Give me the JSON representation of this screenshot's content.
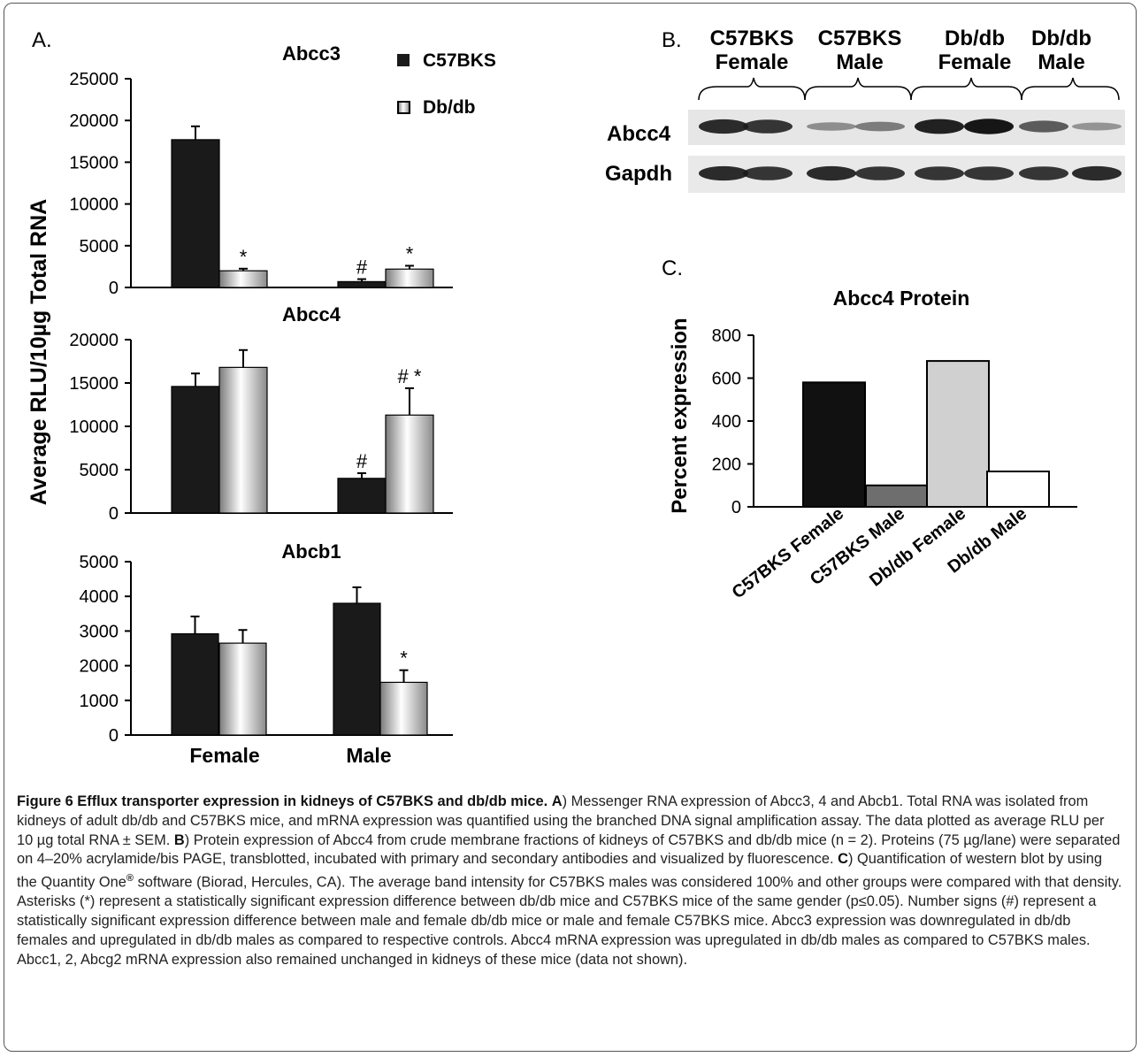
{
  "panels": {
    "a": "A.",
    "b": "B.",
    "c": "C."
  },
  "colors": {
    "c57bks": "#1a1a1a",
    "dbdb_gradient": [
      "#7a7a7a",
      "#ffffff",
      "#8a8a8a"
    ],
    "c57bks_female": "#111111",
    "c57bks_male": "#6e6e6e",
    "dbdb_female": "#d0d0d0",
    "dbdb_male": "#ffffff"
  },
  "chart_data": [
    {
      "type": "bar",
      "title": "Abcc3",
      "categories": [
        "Female",
        "Male"
      ],
      "series": [
        {
          "name": "C57BKS",
          "values": [
            17700,
            700
          ],
          "errors": [
            1600,
            300
          ],
          "marks": [
            "",
            "#"
          ]
        },
        {
          "name": "Db/db",
          "values": [
            2000,
            2200
          ],
          "errors": [
            250,
            400
          ],
          "marks": [
            "*",
            "*"
          ]
        }
      ],
      "yticks": [
        0,
        5000,
        10000,
        15000,
        20000,
        25000
      ],
      "ylim": [
        0,
        25000
      ],
      "ylabel": "Average RLU/10µg Total RNA",
      "legend": [
        "C57BKS",
        "Db/db"
      ],
      "legend_position": "top-right"
    },
    {
      "type": "bar",
      "title": "Abcc4",
      "categories": [
        "Female",
        "Male"
      ],
      "series": [
        {
          "name": "C57BKS",
          "values": [
            14600,
            4000
          ],
          "errors": [
            1500,
            600
          ],
          "marks": [
            "",
            "#"
          ]
        },
        {
          "name": "Db/db",
          "values": [
            16800,
            11300
          ],
          "errors": [
            2000,
            3100
          ],
          "marks": [
            "",
            "# *"
          ]
        }
      ],
      "yticks": [
        0,
        5000,
        10000,
        15000,
        20000
      ],
      "ylim": [
        0,
        20000
      ]
    },
    {
      "type": "bar",
      "title": "Abcb1",
      "categories": [
        "Female",
        "Male"
      ],
      "series": [
        {
          "name": "C57BKS",
          "values": [
            2920,
            3800
          ],
          "errors": [
            500,
            460
          ],
          "marks": [
            "",
            ""
          ]
        },
        {
          "name": "Db/db",
          "values": [
            2650,
            1520
          ],
          "errors": [
            380,
            350
          ],
          "marks": [
            "",
            "*"
          ]
        }
      ],
      "yticks": [
        0,
        1000,
        2000,
        3000,
        4000,
        5000
      ],
      "ylim": [
        0,
        5000
      ]
    },
    {
      "type": "bar",
      "title": "Abcc4 Protein",
      "categories": [
        "C57BKS Female",
        "C57BKS Male",
        "Db/db Female",
        "Db/db Male"
      ],
      "values": [
        580,
        100,
        680,
        165
      ],
      "yticks": [
        0,
        200,
        400,
        600,
        800
      ],
      "ylim": [
        0,
        800
      ],
      "ylabel": "Percent expression"
    }
  ],
  "western_blot": {
    "groups": [
      {
        "line1": "C57BKS",
        "line2": "Female"
      },
      {
        "line1": "C57BKS",
        "line2": "Male"
      },
      {
        "line1": "Db/db",
        "line2": "Female"
      },
      {
        "line1": "Db/db",
        "line2": "Male"
      }
    ],
    "rows": [
      {
        "label": "Abcc4",
        "intensities": [
          0.85,
          0.8,
          0.3,
          0.4,
          0.9,
          0.95,
          0.6,
          0.25
        ]
      },
      {
        "label": "Gapdh",
        "intensities": [
          0.85,
          0.8,
          0.85,
          0.8,
          0.8,
          0.8,
          0.8,
          0.85
        ]
      }
    ]
  },
  "caption": {
    "label": "Figure 6 Efflux transporter expression in kidneys of C57BKS and db/db mice.",
    "a_label": "A",
    "a_text": ") Messenger RNA expression of Abcc3, 4 and Abcb1. Total RNA was isolated from kidneys of adult db/db and C57BKS mice, and mRNA expression was quantified using the branched DNA signal amplification assay. The data plotted as average RLU per 10 µg total RNA ± SEM.",
    "b_label": "B",
    "b_text": ") Protein expression of Abcc4 from crude membrane fractions of kidneys of C57BKS and db/db mice (n = 2). Proteins (75 µg/lane) were separated on 4–20% acrylamide/bis PAGE, transblotted, incubated with primary and secondary antibodies and visualized by fluorescence.",
    "c_label": "C",
    "c_text1": ") Quantification of western blot by using the Quantity One",
    "c_reg": "®",
    "c_text2": " software (Biorad, Hercules, CA). The average band intensity for C57BKS males was considered 100% and other groups were compared with that density. Asterisks (*) represent a statistically significant expression difference between db/db mice and C57BKS mice of the same gender (p≤0.05). Number signs (#) represent a statistically significant expression difference between male and female db/db mice or male and female C57BKS mice. Abcc3 expression was downregulated in db/db females and upregulated in db/db males as compared to respective controls. Abcc4 mRNA expression was upregulated in db/db males as compared to C57BKS males. Abcc1, 2, Abcg2 mRNA expression also remained unchanged in kidneys of these mice (data not shown)."
  }
}
